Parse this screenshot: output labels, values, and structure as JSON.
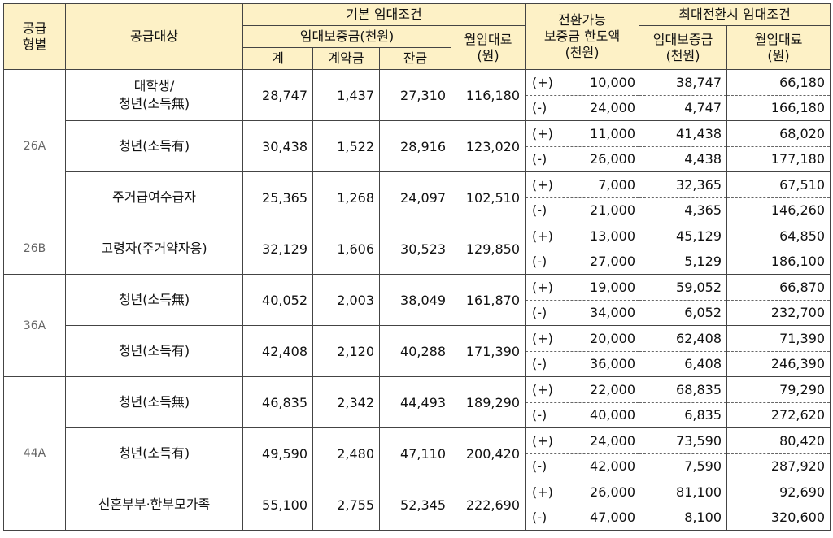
{
  "header": {
    "supply_type": [
      "공급",
      "형별"
    ],
    "target": "공급대상",
    "basic": "기본 임대조건",
    "deposit": "임대보증금(천원)",
    "total": "계",
    "contract": "계약금",
    "balance": "잔금",
    "rent": [
      "월임대료",
      "(원)"
    ],
    "convertible": [
      "전환가능",
      "보증금 한도액",
      "(천원)"
    ],
    "max": "최대전환시 임대조건",
    "max_deposit": [
      "임대보증금",
      "(천원)"
    ],
    "max_rent": [
      "월임대료",
      "(원)"
    ]
  },
  "groups": [
    {
      "type": "26A",
      "rows": [
        {
          "target": [
            "대학생/",
            "청년(소득無)"
          ],
          "total": "28,747",
          "contract": "1,437",
          "balance": "27,310",
          "rent": "116,180",
          "conversions": [
            {
              "sign": "(+)",
              "limit": "10,000",
              "deposit": "38,747",
              "rent": "66,180"
            },
            {
              "sign": "(-)",
              "limit": "24,000",
              "deposit": "4,747",
              "rent": "166,180"
            }
          ]
        },
        {
          "target": [
            "청년(소득有)"
          ],
          "total": "30,438",
          "contract": "1,522",
          "balance": "28,916",
          "rent": "123,020",
          "conversions": [
            {
              "sign": "(+)",
              "limit": "11,000",
              "deposit": "41,438",
              "rent": "68,020"
            },
            {
              "sign": "(-)",
              "limit": "26,000",
              "deposit": "4,438",
              "rent": "177,180"
            }
          ]
        },
        {
          "target": [
            "주거급여수급자"
          ],
          "total": "25,365",
          "contract": "1,268",
          "balance": "24,097",
          "rent": "102,510",
          "conversions": [
            {
              "sign": "(+)",
              "limit": "7,000",
              "deposit": "32,365",
              "rent": "67,510"
            },
            {
              "sign": "(-)",
              "limit": "21,000",
              "deposit": "4,365",
              "rent": "146,260"
            }
          ]
        }
      ]
    },
    {
      "type": "26B",
      "rows": [
        {
          "target": [
            "고령자(주거약자용)"
          ],
          "total": "32,129",
          "contract": "1,606",
          "balance": "30,523",
          "rent": "129,850",
          "conversions": [
            {
              "sign": "(+)",
              "limit": "13,000",
              "deposit": "45,129",
              "rent": "64,850"
            },
            {
              "sign": "(-)",
              "limit": "27,000",
              "deposit": "5,129",
              "rent": "186,100"
            }
          ]
        }
      ]
    },
    {
      "type": "36A",
      "rows": [
        {
          "target": [
            "청년(소득無)"
          ],
          "total": "40,052",
          "contract": "2,003",
          "balance": "38,049",
          "rent": "161,870",
          "conversions": [
            {
              "sign": "(+)",
              "limit": "19,000",
              "deposit": "59,052",
              "rent": "66,870"
            },
            {
              "sign": "(-)",
              "limit": "34,000",
              "deposit": "6,052",
              "rent": "232,700"
            }
          ]
        },
        {
          "target": [
            "청년(소득有)"
          ],
          "total": "42,408",
          "contract": "2,120",
          "balance": "40,288",
          "rent": "171,390",
          "conversions": [
            {
              "sign": "(+)",
              "limit": "20,000",
              "deposit": "62,408",
              "rent": "71,390"
            },
            {
              "sign": "(-)",
              "limit": "36,000",
              "deposit": "6,408",
              "rent": "246,390"
            }
          ]
        }
      ]
    },
    {
      "type": "44A",
      "rows": [
        {
          "target": [
            "청년(소득無)"
          ],
          "total": "46,835",
          "contract": "2,342",
          "balance": "44,493",
          "rent": "189,290",
          "conversions": [
            {
              "sign": "(+)",
              "limit": "22,000",
              "deposit": "68,835",
              "rent": "79,290"
            },
            {
              "sign": "(-)",
              "limit": "40,000",
              "deposit": "6,835",
              "rent": "272,620"
            }
          ]
        },
        {
          "target": [
            "청년(소득有)"
          ],
          "total": "49,590",
          "contract": "2,480",
          "balance": "47,110",
          "rent": "200,420",
          "conversions": [
            {
              "sign": "(+)",
              "limit": "24,000",
              "deposit": "73,590",
              "rent": "80,420"
            },
            {
              "sign": "(-)",
              "limit": "42,000",
              "deposit": "7,590",
              "rent": "287,920"
            }
          ]
        },
        {
          "target": [
            "신혼부부·한부모가족"
          ],
          "total": "55,100",
          "contract": "2,755",
          "balance": "52,345",
          "rent": "222,690",
          "conversions": [
            {
              "sign": "(+)",
              "limit": "26,000",
              "deposit": "81,100",
              "rent": "92,690"
            },
            {
              "sign": "(-)",
              "limit": "47,000",
              "deposit": "8,100",
              "rent": "320,600"
            }
          ]
        }
      ]
    }
  ]
}
